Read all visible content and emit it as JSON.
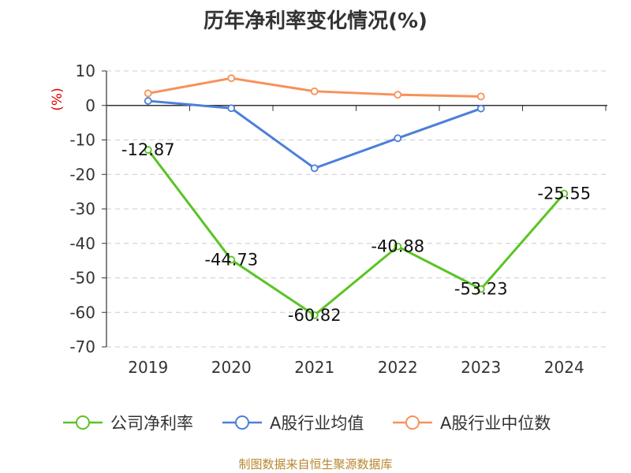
{
  "chart_data": {
    "type": "line",
    "title": "历年净利率变化情况(%)",
    "ylabel": "(%)",
    "categories": [
      "2019",
      "2020",
      "2021",
      "2022",
      "2023",
      "2024"
    ],
    "ylim": [
      -70,
      10
    ],
    "yticks": [
      10,
      0,
      -10,
      -20,
      -30,
      -40,
      -50,
      -60,
      -70
    ],
    "grid": true,
    "legend_position": "bottom",
    "series": [
      {
        "name": "公司净利率",
        "color": "#5ac423",
        "values": [
          -12.87,
          -44.73,
          -60.82,
          -40.88,
          -53.23,
          -25.55
        ],
        "labels": [
          "-12.87",
          "-44.73",
          "-60.82",
          "-40.88",
          "-53.23",
          "-25.55"
        ]
      },
      {
        "name": "A股行业均值",
        "color": "#4c7fd9",
        "values": [
          1.3,
          -0.8,
          -18.2,
          -9.5,
          -0.9,
          null
        ]
      },
      {
        "name": "A股行业中位数",
        "color": "#f7915a",
        "values": [
          3.5,
          7.9,
          4.1,
          3.1,
          2.6,
          null
        ]
      }
    ]
  },
  "footer": "制图数据来自恒生聚源数据库"
}
